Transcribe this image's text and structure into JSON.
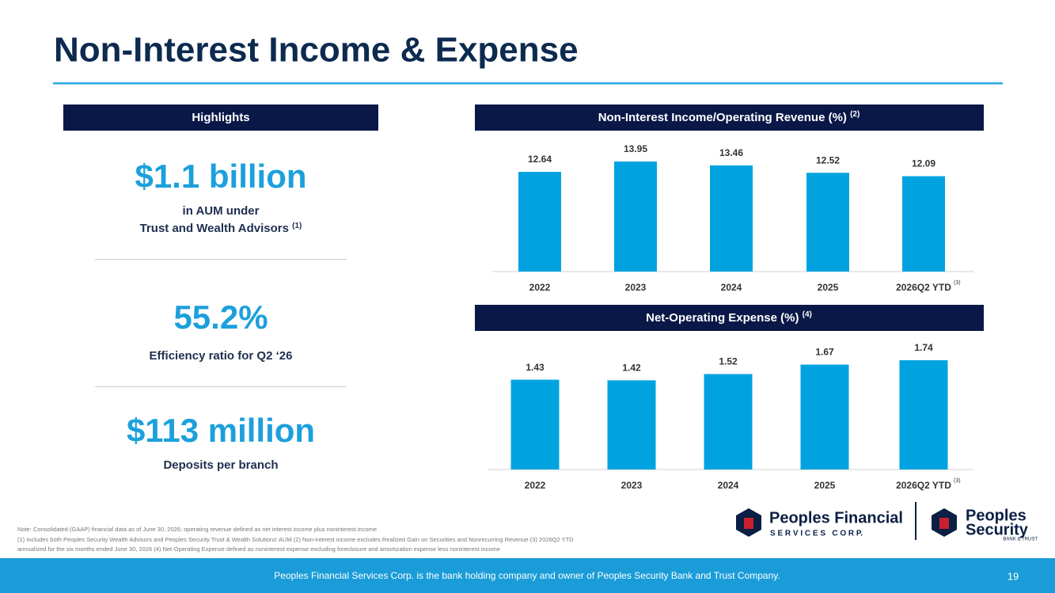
{
  "header": {
    "title": "Non-Interest Income & Expense"
  },
  "highlights": {
    "heading": "Highlights",
    "items": [
      {
        "figure": "$1.1 billion",
        "lines": [
          "in AUM under",
          "Trust and Wealth Advisors"
        ],
        "note": "(1)"
      },
      {
        "figure": "55.2%",
        "lines": [
          "Efficiency ratio for Q2 ‘26"
        ]
      },
      {
        "figure": "$113 million",
        "lines": [
          "Deposits per branch"
        ]
      }
    ]
  },
  "chart_data": [
    {
      "type": "bar",
      "title": "Non-Interest Income/Operating Revenue (%)",
      "title_note": "(2)",
      "categories": [
        "2022",
        "2023",
        "2024",
        "2025",
        "2026Q2 YTD"
      ],
      "category_notes": [
        null,
        null,
        null,
        null,
        "(3)"
      ],
      "values": [
        12.64,
        13.95,
        13.46,
        12.52,
        12.09
      ],
      "color": "#00a3e0"
    },
    {
      "type": "bar",
      "title": "Net-Operating Expense (%)",
      "title_note": "(4)",
      "categories": [
        "2022",
        "2023",
        "2024",
        "2025",
        "2026Q2 YTD"
      ],
      "category_notes": [
        null,
        null,
        null,
        null,
        "(3)"
      ],
      "values": [
        1.43,
        1.42,
        1.52,
        1.67,
        1.74
      ],
      "color": "#00a3e0"
    }
  ],
  "notes": [
    "Note: Consolidated (GAAP) financial data as of June 30, 2026; operating revenue defined as net interest income plus noninterest income",
    "(1) Includes both Peoples Security Wealth Advisors and Peoples Security Trust & Wealth Solutions’ AUM (2) Non-interest income excludes Realized Gain on Securities and Nonrecurring Revenue (3) 2026Q2 YTD",
    "annualized for the six months ended June 30, 2026 (4) Net-Operating Expense defined as noninterest expense excluding foreclosure and amortization expense less noninterest income"
  ],
  "logos": {
    "left": {
      "name": "Peoples Financial",
      "tagline": "S E R V I C E S   C O R P."
    },
    "right": {
      "name_top": "Peoples",
      "name_bottom": "Security",
      "tagline": "BANK & TRUST"
    }
  },
  "footer": {
    "text": "Peoples Financial Services Corp. is the bank holding company and owner of Peoples Security Bank and Trust Company.",
    "page": "19"
  }
}
